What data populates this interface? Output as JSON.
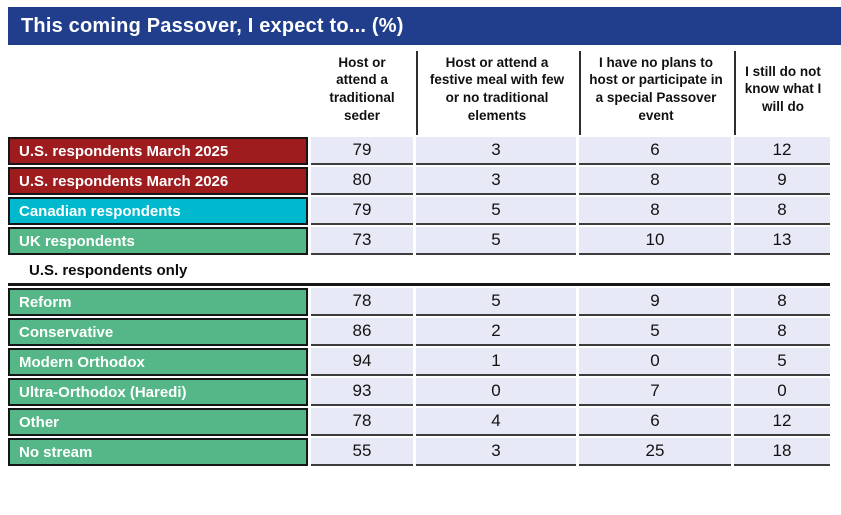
{
  "chart_data": {
    "type": "table",
    "title": "This coming Passover, I expect to... (%)",
    "columns": [
      "Host or attend a traditional seder",
      "Host or attend a festive meal with few or no traditional elements",
      "I have no plans to host or participate in a special Passover event",
      "I still do not know what I will do"
    ],
    "rows": [
      {
        "label": "U.S. respondents March 2025",
        "color_key": "us_red",
        "values": [
          79,
          3,
          6,
          12
        ]
      },
      {
        "label": "U.S. respondents March 2026",
        "color_key": "us_red",
        "values": [
          80,
          3,
          8,
          9
        ]
      },
      {
        "label": "Canadian respondents",
        "color_key": "canada_cyan",
        "values": [
          79,
          5,
          8,
          8
        ]
      },
      {
        "label": "UK respondents",
        "color_key": "green",
        "values": [
          73,
          5,
          10,
          13
        ]
      },
      {
        "label": "U.S. respondents only",
        "section_header": true
      },
      {
        "label": "Reform",
        "color_key": "green",
        "values": [
          78,
          5,
          9,
          8
        ]
      },
      {
        "label": "Conservative",
        "color_key": "green",
        "values": [
          86,
          2,
          5,
          8
        ]
      },
      {
        "label": "Modern Orthodox",
        "color_key": "green",
        "values": [
          94,
          1,
          0,
          5
        ]
      },
      {
        "label": "Ultra-Orthodox (Haredi)",
        "color_key": "green",
        "values": [
          93,
          0,
          7,
          0
        ]
      },
      {
        "label": "Other",
        "color_key": "green",
        "values": [
          78,
          4,
          6,
          12
        ]
      },
      {
        "label": "No stream",
        "color_key": "green",
        "values": [
          55,
          3,
          25,
          18
        ]
      }
    ]
  },
  "colors": {
    "header_blue": "#203e8c",
    "us_red": "#9e1b1e",
    "canada_cyan": "#00b9cf",
    "green": "#55b787",
    "cell_lavender": "#e8e9f6"
  }
}
